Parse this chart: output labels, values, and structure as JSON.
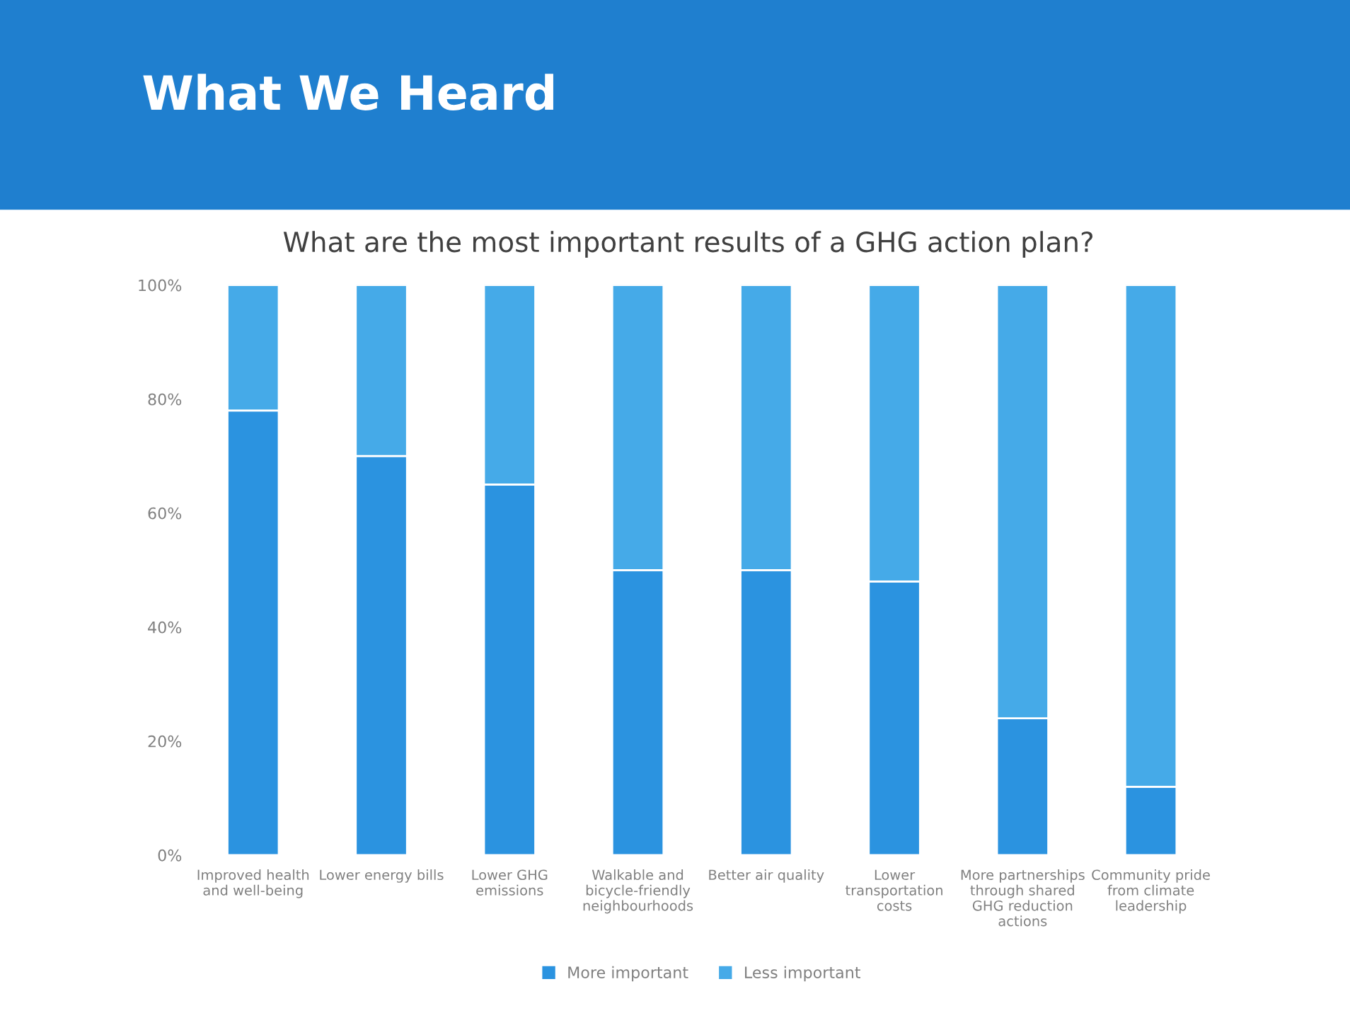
{
  "chart_data": {
    "type": "bar",
    "title": "What We Heard",
    "subtitle": "What are the most important results of a GHG action plan?",
    "categories": [
      "Improved health and well-being",
      "Lower energy bills",
      "Lower GHG emissions",
      "Walkable and bicycle-friendly neighbourhoods",
      "Better air quality",
      "Lower transportation costs",
      "More partnerships through shared GHG reduction actions",
      "Community pride from climate leadership"
    ],
    "series": [
      {
        "name": "More important",
        "color": "#2b93e0",
        "values": [
          78,
          70,
          65,
          50,
          50,
          48,
          24,
          12
        ]
      },
      {
        "name": "Less important",
        "color": "#45aae8",
        "values": [
          22,
          30,
          35,
          50,
          50,
          52,
          76,
          88
        ]
      }
    ],
    "stacked": true,
    "ylim": [
      0,
      100
    ],
    "yticks": [
      {
        "value": 0,
        "label": "0%"
      },
      {
        "value": 20,
        "label": "20%"
      },
      {
        "value": 40,
        "label": "40%"
      },
      {
        "value": 60,
        "label": "60%"
      },
      {
        "value": 80,
        "label": "80%"
      },
      {
        "value": 100,
        "label": "100%"
      }
    ],
    "grid": false,
    "legend": "bottom"
  }
}
